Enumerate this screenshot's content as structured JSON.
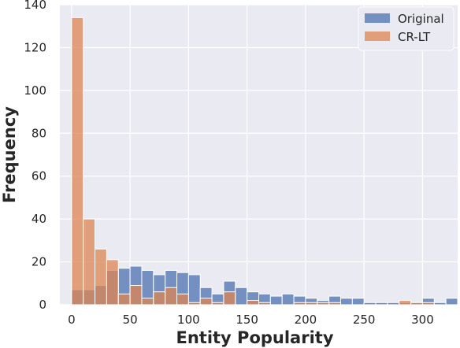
{
  "chart_data": {
    "type": "bar",
    "title": "",
    "xlabel": "Entity Popularity",
    "ylabel": "Frequency",
    "xlim": [
      -10,
      330
    ],
    "ylim": [
      0,
      140
    ],
    "bin_width": 10,
    "x_ticks": [
      0,
      50,
      100,
      150,
      200,
      250,
      300
    ],
    "y_ticks": [
      0,
      20,
      40,
      60,
      80,
      100,
      120,
      140
    ],
    "grid": true,
    "legend_position": "top-right",
    "series": [
      {
        "name": "Original",
        "color": "#4c72b0",
        "bin_starts": [
          0,
          10,
          20,
          30,
          40,
          50,
          60,
          70,
          80,
          90,
          100,
          110,
          120,
          130,
          140,
          150,
          160,
          170,
          180,
          190,
          200,
          210,
          220,
          230,
          240,
          250,
          260,
          270,
          280,
          290,
          300,
          310,
          320
        ],
        "values": [
          7,
          7,
          9,
          16,
          17,
          18,
          16,
          14,
          16,
          15,
          14,
          8,
          5,
          11,
          8,
          6,
          5,
          4,
          5,
          4,
          3,
          2,
          4,
          3,
          3,
          1,
          1,
          1,
          1,
          1,
          3,
          1,
          3
        ]
      },
      {
        "name": "CR-LT",
        "color": "#dd8452",
        "bin_starts": [
          0,
          10,
          20,
          30,
          40,
          50,
          60,
          70,
          80,
          90,
          100,
          110,
          120,
          130,
          140,
          150,
          160,
          170,
          180,
          190,
          200,
          210,
          220,
          230,
          240,
          250,
          260,
          270,
          280,
          290,
          300,
          310,
          320
        ],
        "values": [
          134,
          40,
          26,
          21,
          5,
          9,
          3,
          6,
          8,
          5,
          1,
          3,
          1,
          6,
          0,
          2,
          1,
          0,
          0,
          1,
          1,
          1,
          1,
          0,
          0,
          0,
          0,
          0,
          2,
          1,
          1,
          0,
          0
        ]
      }
    ]
  }
}
